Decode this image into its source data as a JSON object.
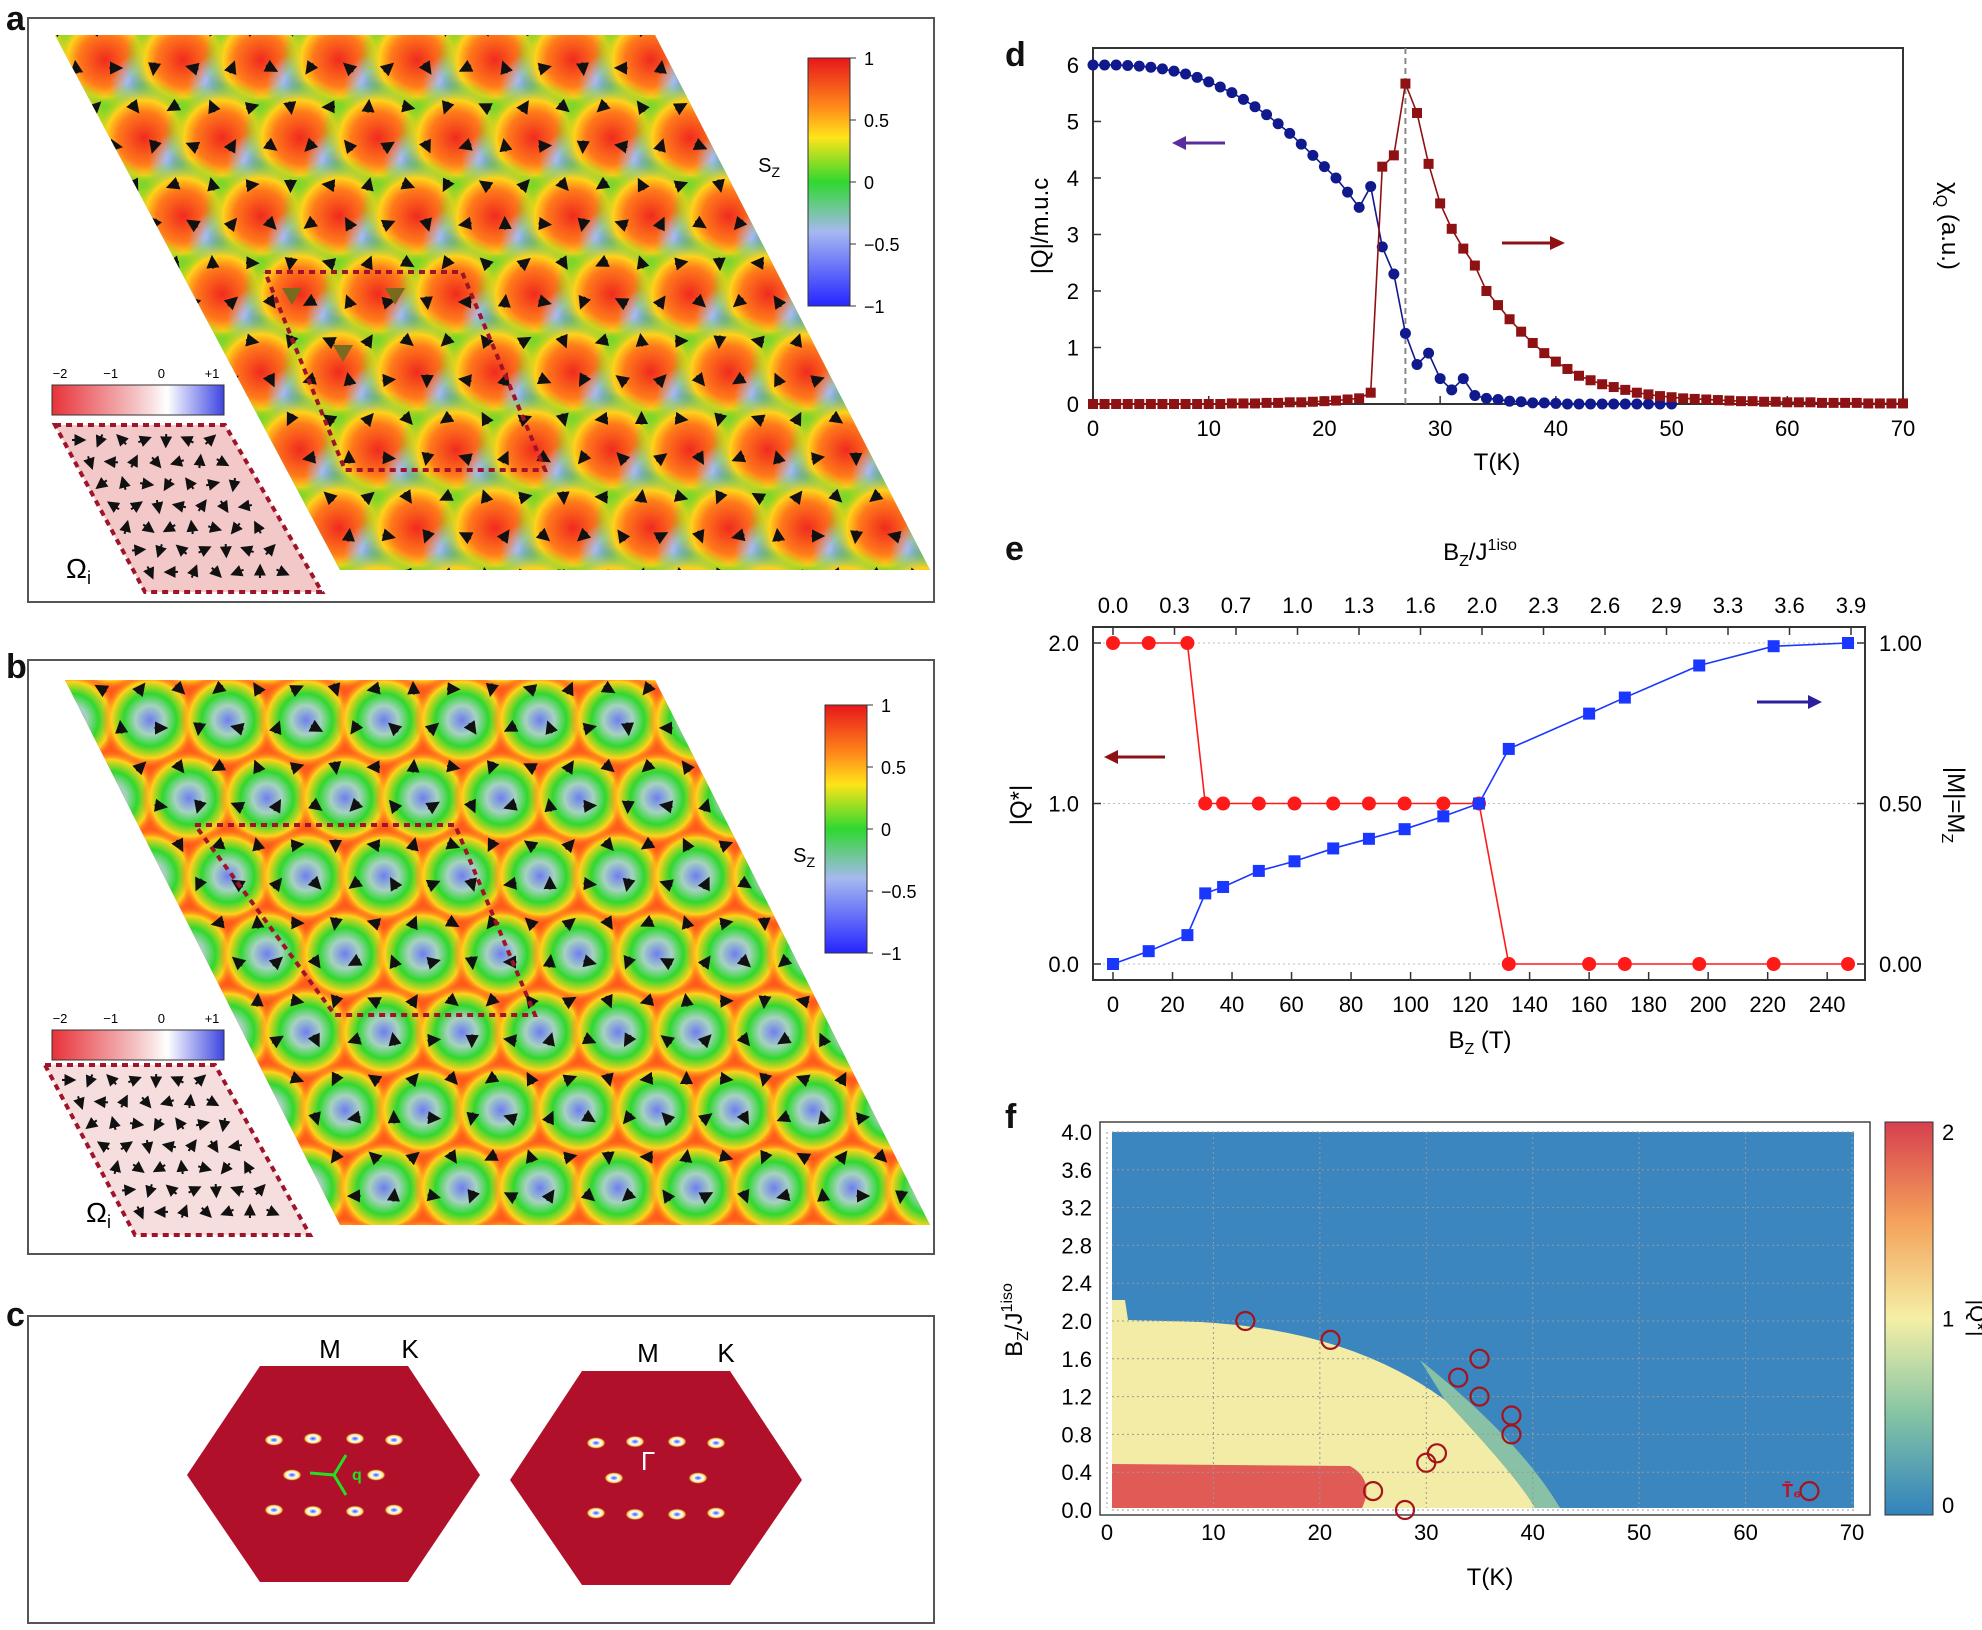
{
  "panel_labels": {
    "a": "a",
    "b": "b",
    "c": "c",
    "d": "d",
    "e": "e",
    "f": "f"
  },
  "colors": {
    "spin_red": "#f02a1e",
    "spin_orange": "#ff8c1a",
    "spin_green": "#2fd82f",
    "spin_blue_light": "#a6b9f0",
    "spin_blue": "#3b4df5",
    "omega_red": "#e8323a",
    "omega_blue": "#3d46e0",
    "bz_red": "#b0102a",
    "series_blue": "#101a8c",
    "series_darkred": "#8e1214",
    "e_red": "#ff1a1a",
    "e_blue": "#1a37ff",
    "arrow_purple": "#5a2d9e"
  },
  "panel_a": {
    "colorbar": {
      "title": "S",
      "title_sub": "Z",
      "ticks": [
        "1",
        "0.5",
        "0",
        "−0.5",
        "−1"
      ]
    },
    "omega_colorbar": {
      "ticks": [
        "−2",
        "−1",
        "0",
        "+1"
      ]
    },
    "omega_label": "Ω",
    "omega_sub": "i"
  },
  "panel_b": {
    "colorbar": {
      "title": "S",
      "title_sub": "Z",
      "ticks": [
        "1",
        "0.5",
        "0",
        "−0.5",
        "−1"
      ]
    },
    "omega_colorbar": {
      "ticks": [
        "−2",
        "−1",
        "0",
        "+1"
      ]
    },
    "omega_label": "Ω",
    "omega_sub": "i"
  },
  "panel_c": {
    "left": {
      "label_m": "M",
      "label_k": "K",
      "q_label": "q"
    },
    "right": {
      "label_m": "M",
      "label_k": "K",
      "gamma_label": "Γ"
    }
  },
  "chart_data": [
    {
      "id": "d",
      "type": "line",
      "xlabel": "T(K)",
      "ylabel_left": "|Q|/m.u.c",
      "ylabel_right": "χ",
      "ylabel_right_sub": "Q",
      "ylabel_right_tail": " (a.u.)",
      "xlim": [
        0,
        70
      ],
      "ylim": [
        0,
        6.3
      ],
      "xticks": [
        "0",
        "10",
        "20",
        "30",
        "40",
        "50",
        "60",
        "70"
      ],
      "yticks": [
        "0",
        "1",
        "2",
        "3",
        "4",
        "5",
        "6"
      ],
      "vline_x": 27,
      "series": [
        {
          "name": "|Q|",
          "axis": "left",
          "marker": "circle",
          "x": [
            0,
            1,
            2,
            3,
            4,
            5,
            6,
            7,
            8,
            9,
            10,
            11,
            12,
            13,
            14,
            15,
            16,
            17,
            18,
            19,
            20,
            21,
            22,
            23,
            24,
            25,
            26,
            27,
            28,
            29,
            30,
            31,
            32,
            33,
            34,
            35,
            36,
            37,
            38,
            39,
            40,
            41,
            42,
            43,
            44,
            45,
            46,
            47,
            48,
            49,
            50
          ],
          "y": [
            6.0,
            6.0,
            6.0,
            5.99,
            5.98,
            5.96,
            5.93,
            5.89,
            5.84,
            5.78,
            5.7,
            5.61,
            5.51,
            5.39,
            5.26,
            5.12,
            4.96,
            4.79,
            4.6,
            4.4,
            4.2,
            4.0,
            3.75,
            3.48,
            3.85,
            2.78,
            2.3,
            1.25,
            0.7,
            0.9,
            0.45,
            0.25,
            0.45,
            0.15,
            0.1,
            0.08,
            0.05,
            0.04,
            0.02,
            0.02,
            0.01,
            0,
            0,
            0,
            0,
            0,
            0,
            0,
            0,
            0,
            0
          ]
        },
        {
          "name": "χQ",
          "axis": "right",
          "marker": "square",
          "x": [
            0,
            1,
            2,
            3,
            4,
            5,
            6,
            7,
            8,
            9,
            10,
            11,
            12,
            13,
            14,
            15,
            16,
            17,
            18,
            19,
            20,
            21,
            22,
            23,
            24,
            25,
            26,
            27,
            28,
            29,
            30,
            31,
            32,
            33,
            34,
            35,
            36,
            37,
            38,
            39,
            40,
            41,
            42,
            43,
            44,
            45,
            46,
            47,
            48,
            49,
            50,
            51,
            52,
            53,
            54,
            55,
            56,
            57,
            58,
            59,
            60,
            61,
            62,
            63,
            64,
            65,
            66,
            67,
            68,
            69,
            70
          ],
          "y": [
            0,
            0,
            0,
            0,
            0,
            0,
            0,
            0,
            0,
            0,
            0,
            0,
            0.01,
            0.01,
            0.01,
            0.02,
            0.02,
            0.03,
            0.03,
            0.04,
            0.05,
            0.06,
            0.08,
            0.1,
            0.2,
            4.2,
            4.4,
            5.67,
            5.15,
            4.25,
            3.55,
            3.1,
            2.75,
            2.45,
            2.0,
            1.75,
            1.5,
            1.28,
            1.08,
            0.9,
            0.75,
            0.62,
            0.5,
            0.42,
            0.35,
            0.3,
            0.25,
            0.2,
            0.17,
            0.14,
            0.12,
            0.1,
            0.09,
            0.08,
            0.07,
            0.06,
            0.05,
            0.05,
            0.04,
            0.04,
            0.03,
            0.03,
            0.03,
            0.02,
            0.02,
            0.02,
            0.02,
            0.01,
            0.01,
            0.01,
            0.01
          ]
        }
      ]
    },
    {
      "id": "e",
      "type": "line",
      "xlabel": "B",
      "xlabel_sub": "Z",
      "xlabel_tail": " (T)",
      "toplabel": "B",
      "toplabel_sub": "Z",
      "toplabel_tail": "/J",
      "toplabel_sup": "1iso",
      "ylabel_left": "|Q*|",
      "ylabel_right": "|M|=M",
      "ylabel_right_sub": "Z",
      "xlim": [
        0,
        248
      ],
      "ylim_left": [
        0,
        2
      ],
      "ylim_right": [
        0,
        1
      ],
      "xticks": [
        "0",
        "20",
        "40",
        "60",
        "80",
        "100",
        "120",
        "140",
        "160",
        "180",
        "200",
        "220",
        "240"
      ],
      "top_ticks": [
        "0.0",
        "0.3",
        "0.7",
        "1.0",
        "1.3",
        "1.6",
        "2.0",
        "2.3",
        "2.6",
        "2.9",
        "3.3",
        "3.6",
        "3.9"
      ],
      "yticks_left": [
        "0.0",
        "1.0",
        "2.0"
      ],
      "yticks_right": [
        "0.00",
        "0.50",
        "1.00"
      ],
      "series": [
        {
          "name": "|Q*|",
          "axis": "left",
          "marker": "circle",
          "x": [
            0,
            12,
            25,
            31,
            37,
            49,
            61,
            74,
            86,
            98,
            111,
            123,
            133,
            160,
            172,
            197,
            222,
            247
          ],
          "y": [
            2,
            2,
            2,
            1,
            1,
            1,
            1,
            1,
            1,
            1,
            1,
            1,
            0,
            0,
            0,
            0,
            0,
            0
          ]
        },
        {
          "name": "|M|",
          "axis": "right",
          "marker": "square",
          "x": [
            0,
            12,
            25,
            31,
            37,
            49,
            61,
            74,
            86,
            98,
            111,
            123,
            133,
            160,
            172,
            197,
            222,
            247
          ],
          "y": [
            0,
            0.04,
            0.09,
            0.22,
            0.24,
            0.29,
            0.32,
            0.36,
            0.39,
            0.42,
            0.46,
            0.5,
            0.67,
            0.78,
            0.83,
            0.93,
            0.99,
            1.0
          ]
        }
      ]
    },
    {
      "id": "f",
      "type": "heatmap",
      "xlabel": "T(K)",
      "ylabel": "B",
      "ylabel_sub": "Z",
      "ylabel_tail": "/J",
      "ylabel_sup": "1iso",
      "colorbar_label": "|Q*|",
      "xlim": [
        0,
        70
      ],
      "ylim": [
        0,
        4.0
      ],
      "xticks": [
        "0",
        "10",
        "20",
        "30",
        "40",
        "50",
        "60",
        "70"
      ],
      "yticks": [
        "0.0",
        "0.4",
        "0.8",
        "1.2",
        "1.6",
        "2.0",
        "2.4",
        "2.8",
        "3.2",
        "3.6",
        "4.0"
      ],
      "colorbar_ticks": [
        "2",
        "1",
        "0"
      ],
      "annotation": "T̄₆",
      "circles": [
        {
          "x": 13,
          "y": 2.0
        },
        {
          "x": 21,
          "y": 1.8
        },
        {
          "x": 33,
          "y": 1.4
        },
        {
          "x": 35,
          "y": 1.6
        },
        {
          "x": 35,
          "y": 1.2
        },
        {
          "x": 38,
          "y": 1.0
        },
        {
          "x": 38,
          "y": 0.8
        },
        {
          "x": 31,
          "y": 0.6
        },
        {
          "x": 30,
          "y": 0.5
        },
        {
          "x": 25,
          "y": 0.2
        },
        {
          "x": 28,
          "y": 0.0
        },
        {
          "x": 66,
          "y": 0.2
        }
      ]
    }
  ]
}
